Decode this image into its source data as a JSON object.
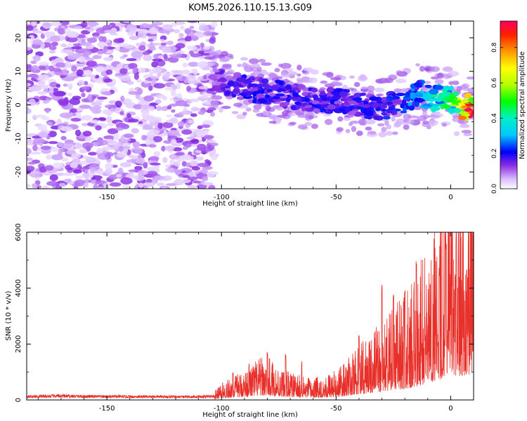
{
  "title": "KOM5.2026.110.15.13.G09",
  "chart_data": [
    {
      "type": "heatmap",
      "name": "spectrogram",
      "xlabel": "Height of straight line (km)",
      "ylabel": "Frequency (Hz)",
      "xlim": [
        -185,
        10
      ],
      "ylim": [
        -25,
        25
      ],
      "xticks": [
        -150,
        -100,
        -50,
        0
      ],
      "yticks": [
        -20,
        -10,
        0,
        10,
        20
      ],
      "xtick_labels": [
        "-150",
        "-100",
        "-50",
        "0"
      ],
      "ytick_labels": [
        "-20",
        "-10",
        "0",
        "10",
        "20"
      ],
      "colorbar": {
        "label": "Normalized spectral amplitude",
        "range": [
          0,
          0.95
        ],
        "ticks": [
          0.0,
          0.2,
          0.4,
          0.6,
          0.8
        ],
        "tick_labels": [
          "0.0",
          "0.2",
          "0.4",
          "0.6",
          "0.8"
        ]
      },
      "noise_region": {
        "x_range": [
          -185,
          -103
        ],
        "freq_range": [
          -25,
          25
        ],
        "amplitude": [
          0.03,
          0.15
        ]
      },
      "signal_track": [
        {
          "x": -103,
          "freq": 7.5,
          "amp": 0.15
        },
        {
          "x": -90,
          "freq": 5.0,
          "amp": 0.2
        },
        {
          "x": -75,
          "freq": 3.5,
          "amp": 0.2
        },
        {
          "x": -60,
          "freq": 1.5,
          "amp": 0.2
        },
        {
          "x": -45,
          "freq": 1.0,
          "amp": 0.2
        },
        {
          "x": -30,
          "freq": -1.0,
          "amp": 0.22
        },
        {
          "x": -20,
          "freq": 1.5,
          "amp": 0.25
        },
        {
          "x": -13,
          "freq": 3.5,
          "amp": 0.32
        },
        {
          "x": -8,
          "freq": 1.5,
          "amp": 0.4
        },
        {
          "x": -2,
          "freq": 3.0,
          "amp": 0.45
        },
        {
          "x": 3,
          "freq": 0.0,
          "amp": 0.6
        },
        {
          "x": 7,
          "freq": -0.7,
          "amp": 0.9
        },
        {
          "x": 10,
          "freq": -0.7,
          "amp": 0.95
        }
      ]
    },
    {
      "type": "line",
      "name": "snr",
      "xlabel": "Height of straight line (km)",
      "ylabel": "SNR (10 * v/v)",
      "xlim": [
        -185,
        10
      ],
      "ylim": [
        0,
        6000
      ],
      "xticks": [
        -150,
        -100,
        -50,
        0
      ],
      "yticks": [
        0,
        2000,
        4000,
        6000
      ],
      "xtick_labels": [
        "-150",
        "-100",
        "-50",
        "0"
      ],
      "ytick_labels": [
        "0",
        "2000",
        "4000",
        "6000"
      ],
      "color": "#e8302a",
      "series": [
        {
          "name": "SNR",
          "x": [
            -185,
            -170,
            -160,
            -150,
            -140,
            -130,
            -120,
            -110,
            -103,
            -100,
            -95,
            -90,
            -85,
            -80,
            -75,
            -70,
            -65,
            -60,
            -55,
            -50,
            -45,
            -40,
            -35,
            -30,
            -25,
            -20,
            -15,
            -10,
            -5,
            -2,
            0,
            3,
            6,
            10
          ],
          "base": [
            120,
            140,
            125,
            120,
            115,
            120,
            110,
            115,
            130,
            250,
            350,
            450,
            600,
            650,
            500,
            420,
            350,
            320,
            380,
            430,
            600,
            800,
            1000,
            1150,
            1350,
            1600,
            1900,
            2400,
            2900,
            3300,
            3700,
            3400,
            3500,
            3800
          ],
          "peaks": [
            {
              "x": -95,
              "y": 1000
            },
            {
              "x": -88,
              "y": 1300
            },
            {
              "x": -80,
              "y": 1700
            },
            {
              "x": -72,
              "y": 1650
            },
            {
              "x": -65,
              "y": 1400
            },
            {
              "x": -40,
              "y": 2500
            },
            {
              "x": -30,
              "y": 4200
            },
            {
              "x": -25,
              "y": 3800
            },
            {
              "x": -20,
              "y": 4000
            },
            {
              "x": -16,
              "y": 4300
            },
            {
              "x": -15,
              "y": 5000
            },
            {
              "x": -5,
              "y": 4800
            },
            {
              "x": -2,
              "y": 5900
            },
            {
              "x": 2,
              "y": 4600
            },
            {
              "x": 7,
              "y": 4800
            }
          ]
        }
      ]
    }
  ]
}
